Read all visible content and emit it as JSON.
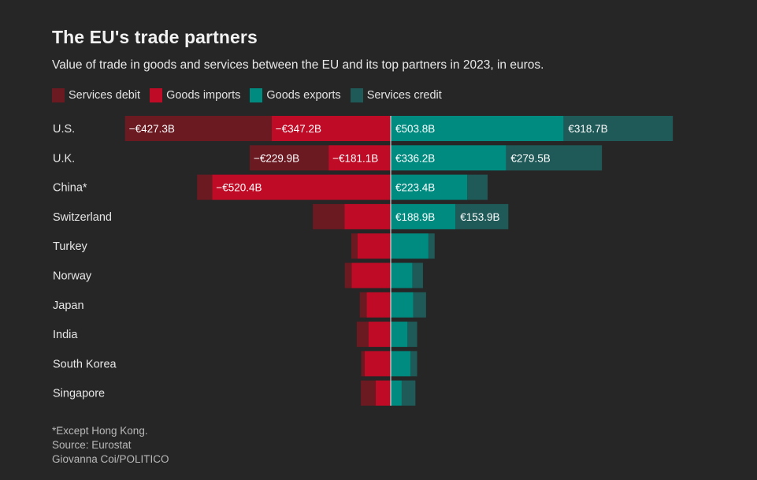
{
  "title": "The EU's trade partners",
  "subtitle": "Value of trade in goods and services between the EU and its top partners in 2023, in euros.",
  "legend": [
    {
      "label": "Services debit",
      "color": "#6b1a22"
    },
    {
      "label": "Goods imports",
      "color": "#c00b26"
    },
    {
      "label": "Goods exports",
      "color": "#008b80"
    },
    {
      "label": "Services credit",
      "color": "#1f5a58"
    }
  ],
  "footer": {
    "note": "*Except Hong Kong.",
    "source": "Source: Eurostat",
    "credit": "Giovanna Coi/POLITICO"
  },
  "chart_data": {
    "type": "bar",
    "orientation": "horizontal-diverging",
    "title": "The EU's trade partners",
    "unit": "billion euros",
    "categories": [
      "U.S.",
      "U.K.",
      "China*",
      "Switzerland",
      "Turkey",
      "Norway",
      "Japan",
      "India",
      "South Korea",
      "Singapore"
    ],
    "series": [
      {
        "name": "Services debit",
        "values": [
          -427.3,
          -229.9,
          -44,
          -92,
          -18,
          -20,
          -20,
          -34,
          -10,
          -43
        ],
        "color": "#6b1a22"
      },
      {
        "name": "Goods imports",
        "values": [
          -347.2,
          -181.1,
          -520.4,
          -135,
          -97,
          -114,
          -70,
          -65,
          -76,
          -44
        ],
        "color": "#c00b26"
      },
      {
        "name": "Goods exports",
        "values": [
          503.8,
          336.2,
          223.4,
          188.9,
          110,
          63,
          66,
          49,
          58,
          32
        ],
        "color": "#008b80"
      },
      {
        "name": "Services credit",
        "values": [
          318.7,
          279.5,
          59,
          153.9,
          18,
          31,
          37,
          28,
          19,
          40
        ],
        "color": "#1f5a58"
      }
    ],
    "labels": [
      {
        "debit": "−€427.3B",
        "imports": "−€347.2B",
        "exports": "€503.8B",
        "credit": "€318.7B"
      },
      {
        "debit": "−€229.9B",
        "imports": "−€181.1B",
        "exports": "€336.2B",
        "credit": "€279.5B"
      },
      {
        "debit": "",
        "imports": "−€520.4B",
        "exports": "€223.4B",
        "credit": ""
      },
      {
        "debit": "",
        "imports": "",
        "exports": "€188.9B",
        "credit": "€153.9B"
      },
      {
        "debit": "",
        "imports": "",
        "exports": "",
        "credit": ""
      },
      {
        "debit": "",
        "imports": "",
        "exports": "",
        "credit": ""
      },
      {
        "debit": "",
        "imports": "",
        "exports": "",
        "credit": ""
      },
      {
        "debit": "",
        "imports": "",
        "exports": "",
        "credit": ""
      },
      {
        "debit": "",
        "imports": "",
        "exports": "",
        "credit": ""
      },
      {
        "debit": "",
        "imports": "",
        "exports": "",
        "credit": ""
      }
    ]
  }
}
